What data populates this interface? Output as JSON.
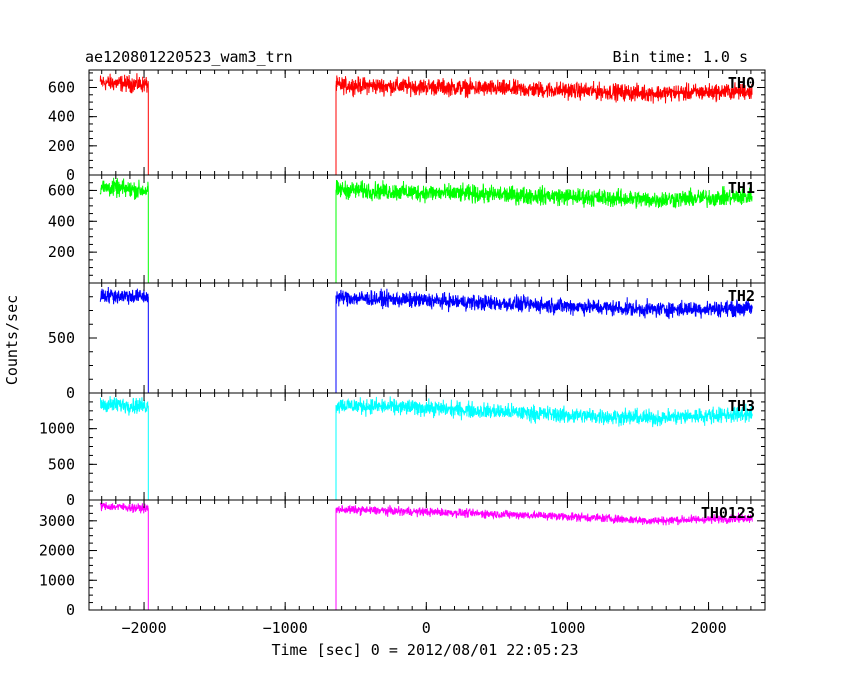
{
  "header": {
    "title": "ae120801220523_wam3_trn",
    "bin_time": "Bin time: 1.0 s"
  },
  "axes": {
    "xlabel": "Time [sec] 0 = 2012/08/01 22:05:23",
    "ylabel": "Counts/sec"
  },
  "chart_data": {
    "type": "line",
    "xlim": [
      -2390,
      2400
    ],
    "x_ticks": [
      -2000,
      -1000,
      0,
      1000,
      2000
    ],
    "x_tick_labels": [
      "−2000",
      "−1000",
      "0",
      "1000",
      "2000"
    ],
    "gap": [
      -1970,
      -640
    ],
    "data_range": [
      -2310,
      2310
    ],
    "panels": [
      {
        "name": "TH0",
        "color": "#ff0000",
        "ylim": [
          0,
          720
        ],
        "y_ticks": [
          0,
          200,
          400,
          600
        ],
        "y_tick_labels": [
          "0",
          "200",
          "400",
          "600"
        ],
        "noise": 28,
        "trend": [
          [
            -2310,
            635
          ],
          [
            -1980,
            620
          ],
          [
            -630,
            615
          ],
          [
            0,
            605
          ],
          [
            1000,
            580
          ],
          [
            1600,
            560
          ],
          [
            2310,
            575
          ]
        ]
      },
      {
        "name": "TH1",
        "color": "#00ff00",
        "ylim": [
          0,
          700
        ],
        "y_ticks": [
          200,
          400,
          600
        ],
        "y_tick_labels": [
          "200",
          "400",
          "600"
        ],
        "noise": 28,
        "trend": [
          [
            -2310,
            620
          ],
          [
            -1980,
            600
          ],
          [
            -630,
            605
          ],
          [
            0,
            585
          ],
          [
            1000,
            560
          ],
          [
            1600,
            540
          ],
          [
            2310,
            560
          ]
        ]
      },
      {
        "name": "TH2",
        "color": "#0000ff",
        "ylim": [
          0,
          1000
        ],
        "y_ticks": [
          0,
          500
        ],
        "y_tick_labels": [
          "0",
          "500"
        ],
        "noise": 35,
        "trend": [
          [
            -2310,
            890
          ],
          [
            -1980,
            875
          ],
          [
            -630,
            870
          ],
          [
            0,
            840
          ],
          [
            1000,
            790
          ],
          [
            1600,
            760
          ],
          [
            2310,
            770
          ]
        ]
      },
      {
        "name": "TH3",
        "color": "#00ffff",
        "ylim": [
          0,
          1500
        ],
        "y_ticks": [
          0,
          500,
          1000
        ],
        "y_tick_labels": [
          "0",
          "500",
          "1000"
        ],
        "noise": 55,
        "trend": [
          [
            -2310,
            1340
          ],
          [
            -1980,
            1320
          ],
          [
            -630,
            1330
          ],
          [
            0,
            1290
          ],
          [
            1000,
            1190
          ],
          [
            1600,
            1150
          ],
          [
            2310,
            1210
          ]
        ]
      },
      {
        "name": "TH0123",
        "color": "#ff00ff",
        "ylim": [
          0,
          3700
        ],
        "y_ticks": [
          0,
          1000,
          2000,
          3000
        ],
        "y_tick_labels": [
          "0",
          "1000",
          "2000",
          "3000"
        ],
        "noise": 70,
        "trend": [
          [
            -2310,
            3500
          ],
          [
            -1980,
            3420
          ],
          [
            -630,
            3380
          ],
          [
            0,
            3300
          ],
          [
            1000,
            3150
          ],
          [
            1600,
            3000
          ],
          [
            2310,
            3100
          ]
        ]
      }
    ]
  }
}
